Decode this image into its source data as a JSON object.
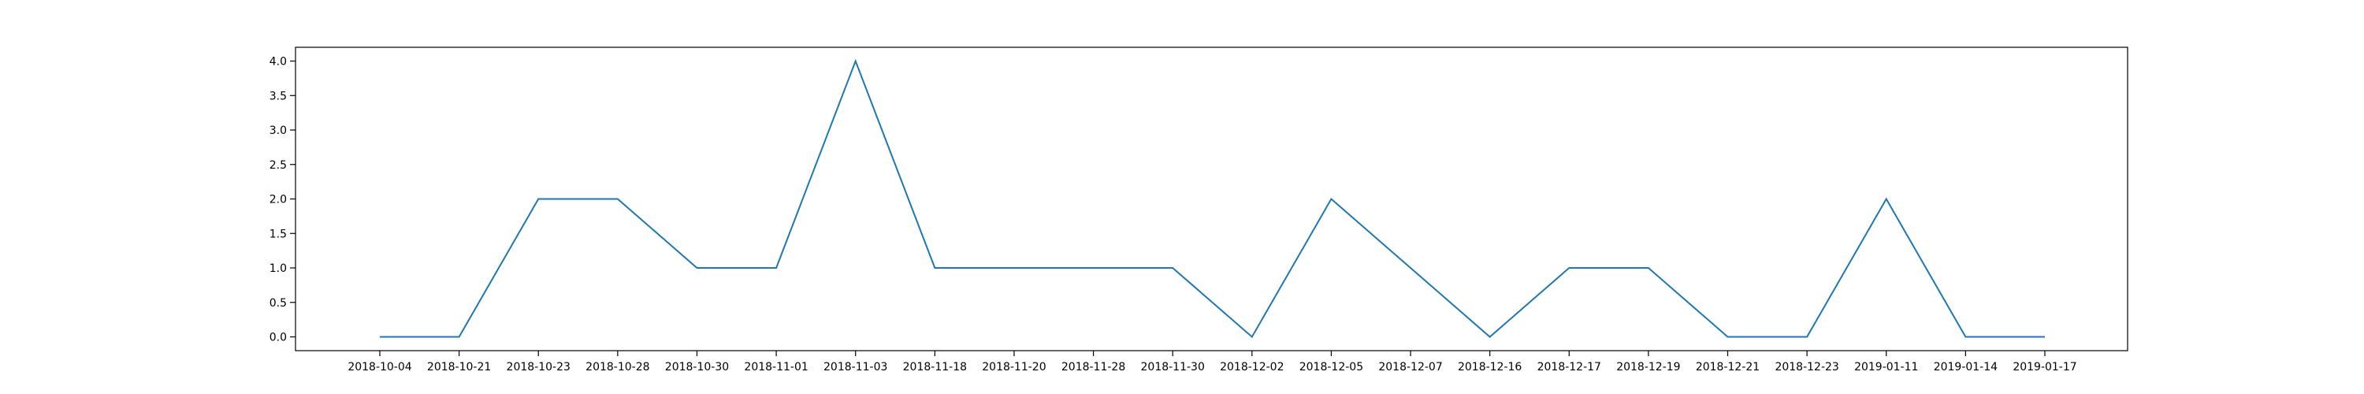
{
  "chart_data": {
    "type": "line",
    "title": "",
    "xlabel": "",
    "ylabel": "",
    "categories": [
      "2018-10-04",
      "2018-10-21",
      "2018-10-23",
      "2018-10-28",
      "2018-10-30",
      "2018-11-01",
      "2018-11-03",
      "2018-11-18",
      "2018-11-20",
      "2018-11-28",
      "2018-11-30",
      "2018-12-02",
      "2018-12-05",
      "2018-12-07",
      "2018-12-16",
      "2018-12-17",
      "2018-12-19",
      "2018-12-21",
      "2018-12-23",
      "2019-01-11",
      "2019-01-14",
      "2019-01-17"
    ],
    "series": [
      {
        "values": [
          0,
          0,
          2,
          2,
          1,
          1,
          4,
          1,
          1,
          1,
          1,
          0,
          2,
          1,
          0,
          1,
          1,
          0,
          0,
          2,
          0,
          0
        ],
        "color": "#1f77b4"
      }
    ],
    "yticks": [
      "0.0",
      "0.5",
      "1.0",
      "1.5",
      "2.0",
      "2.5",
      "3.0",
      "3.5",
      "4.0"
    ],
    "ylim": [
      -0.2,
      4.2
    ],
    "grid": false,
    "legend": "none"
  }
}
